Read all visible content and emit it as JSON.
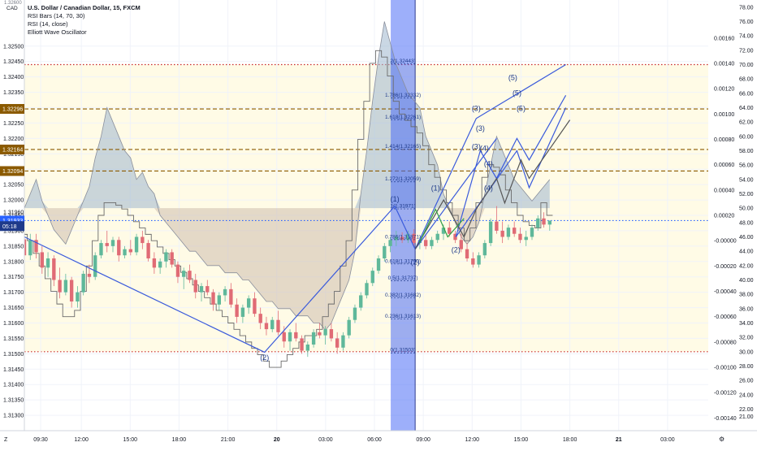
{
  "header": {
    "title": "U.S. Dollar / Canadian Dollar, 15, FXCM",
    "indicators": [
      "RSI Bars (14, 70, 30)",
      "RSI (14, close)",
      "Elliott Wave Oscillator"
    ],
    "currency": "CAD",
    "top_price_fragment": "1.32600"
  },
  "chart_data": {
    "type": "candlestick",
    "symbol": "USD/CAD",
    "interval": "15",
    "source": "FXCM",
    "price_axis": {
      "range": [
        1.3125,
        1.3265
      ],
      "ticks": [
        "1.32500",
        "1.32450",
        "1.32400",
        "1.32350",
        "1.32300",
        "1.32250",
        "1.32200",
        "1.32150",
        "1.32100",
        "1.32050",
        "1.32000",
        "1.31950",
        "1.31900",
        "1.31850",
        "1.31800",
        "1.31750",
        "1.31700",
        "1.31650",
        "1.31600",
        "1.31550",
        "1.31500",
        "1.31450",
        "1.31400",
        "1.31350",
        "1.31300"
      ],
      "markers": [
        {
          "label": "1.32296",
          "value": 1.32296,
          "color": "#8b5a00"
        },
        {
          "label": "1.32164",
          "value": 1.32164,
          "color": "#8b5a00"
        },
        {
          "label": "1.32094",
          "value": 1.32094,
          "color": "#8b5a00"
        },
        {
          "label": "1.31933",
          "value": 1.31933,
          "color": "#2962ff"
        },
        {
          "label": "05:18",
          "value": 1.31915,
          "color": "#1e3a8a"
        }
      ],
      "partial_label": "1.31960"
    },
    "rsi_axis": {
      "range": [
        19,
        79
      ],
      "ticks": [
        "78.00",
        "76.00",
        "74.00",
        "72.00",
        "70.00",
        "68.00",
        "66.00",
        "64.00",
        "62.00",
        "60.00",
        "58.00",
        "56.00",
        "54.00",
        "52.00",
        "50.00",
        "48.00",
        "46.00",
        "44.00",
        "42.00",
        "40.00",
        "38.00",
        "36.00",
        "34.00",
        "32.00",
        "30.00",
        "28.00",
        "26.00",
        "24.00",
        "22.00",
        "21.00"
      ],
      "overbought": 70,
      "oversold": 30
    },
    "ewo_axis": {
      "range": [
        -0.0015,
        0.0019
      ],
      "ticks": [
        "0.00160",
        "0.00140",
        "0.00120",
        "0.00100",
        "0.00080",
        "0.00060",
        "0.00040",
        "0.00020",
        "-0.00000",
        "-0.00020",
        "-0.00040",
        "-0.00060",
        "-0.00080",
        "-0.00100",
        "-0.00120",
        "-0.00140"
      ]
    },
    "time_axis": {
      "range": [
        0,
        168
      ],
      "ticks": [
        {
          "label": "09:30",
          "t": 4
        },
        {
          "label": "12:00",
          "t": 14
        },
        {
          "label": "15:00",
          "t": 26
        },
        {
          "label": "18:00",
          "t": 38
        },
        {
          "label": "21:00",
          "t": 50
        },
        {
          "label": "20",
          "t": 62
        },
        {
          "label": "03:00",
          "t": 74
        },
        {
          "label": "06:00",
          "t": 86
        },
        {
          "label": "09:00",
          "t": 98
        },
        {
          "label": "12:00",
          "t": 110
        },
        {
          "label": "15:00",
          "t": 122
        },
        {
          "label": "18:00",
          "t": 134
        },
        {
          "label": "21",
          "t": 146
        },
        {
          "label": "03:00",
          "t": 158
        }
      ],
      "corner_left": "Z",
      "corner_right": "⚙"
    },
    "candles": [
      [
        1.31872,
        1.31875,
        1.318,
        1.3182
      ],
      [
        1.3182,
        1.3189,
        1.31805,
        1.3187
      ],
      [
        1.3187,
        1.3189,
        1.3181,
        1.3183
      ],
      [
        1.3183,
        1.3185,
        1.3176,
        1.3178
      ],
      [
        1.3178,
        1.3183,
        1.3175,
        1.3181
      ],
      [
        1.3181,
        1.3182,
        1.3172,
        1.3174
      ],
      [
        1.3174,
        1.3178,
        1.3168,
        1.317
      ],
      [
        1.317,
        1.3176,
        1.3169,
        1.3174
      ],
      [
        1.3174,
        1.3175,
        1.3165,
        1.3167
      ],
      [
        1.3167,
        1.3172,
        1.3165,
        1.317
      ],
      [
        1.317,
        1.3177,
        1.3169,
        1.3176
      ],
      [
        1.3176,
        1.3179,
        1.3173,
        1.3175
      ],
      [
        1.3175,
        1.3183,
        1.3174,
        1.3182
      ],
      [
        1.3182,
        1.3187,
        1.3181,
        1.3186
      ],
      [
        1.3186,
        1.319,
        1.3183,
        1.3185
      ],
      [
        1.3185,
        1.3188,
        1.3183,
        1.3187
      ],
      [
        1.3187,
        1.3188,
        1.318,
        1.3182
      ],
      [
        1.3182,
        1.3185,
        1.3181,
        1.3184
      ],
      [
        1.3184,
        1.3187,
        1.3182,
        1.3183
      ],
      [
        1.3183,
        1.3189,
        1.3182,
        1.3188
      ],
      [
        1.3188,
        1.319,
        1.3184,
        1.3186
      ],
      [
        1.3186,
        1.3187,
        1.318,
        1.3181
      ],
      [
        1.3181,
        1.3183,
        1.3176,
        1.3178
      ],
      [
        1.3178,
        1.3181,
        1.3176,
        1.318
      ],
      [
        1.318,
        1.3184,
        1.3178,
        1.3183
      ],
      [
        1.3183,
        1.3184,
        1.3178,
        1.3179
      ],
      [
        1.3179,
        1.318,
        1.3173,
        1.3175
      ],
      [
        1.3175,
        1.3178,
        1.3171,
        1.3177
      ],
      [
        1.3177,
        1.3179,
        1.3173,
        1.3174
      ],
      [
        1.3174,
        1.3176,
        1.3168,
        1.317
      ],
      [
        1.317,
        1.3173,
        1.3167,
        1.3172
      ],
      [
        1.3172,
        1.3174,
        1.3169,
        1.317
      ],
      [
        1.317,
        1.3171,
        1.3164,
        1.3166
      ],
      [
        1.3166,
        1.317,
        1.3164,
        1.3169
      ],
      [
        1.3169,
        1.3172,
        1.3167,
        1.3171
      ],
      [
        1.3171,
        1.3173,
        1.3165,
        1.3166
      ],
      [
        1.3166,
        1.3168,
        1.316,
        1.3162
      ],
      [
        1.3162,
        1.3166,
        1.316,
        1.3165
      ],
      [
        1.3165,
        1.3169,
        1.3163,
        1.3168
      ],
      [
        1.3168,
        1.317,
        1.3162,
        1.3163
      ],
      [
        1.3163,
        1.3165,
        1.3158,
        1.316
      ],
      [
        1.316,
        1.3162,
        1.3156,
        1.3158
      ],
      [
        1.3158,
        1.3162,
        1.3157,
        1.3161
      ],
      [
        1.3161,
        1.3164,
        1.3156,
        1.3157
      ],
      [
        1.3157,
        1.3159,
        1.3152,
        1.3154
      ],
      [
        1.3154,
        1.3158,
        1.3151,
        1.3157
      ],
      [
        1.3157,
        1.316,
        1.3154,
        1.3155
      ],
      [
        1.3155,
        1.3156,
        1.315,
        1.3151
      ],
      [
        1.3151,
        1.3154,
        1.3149,
        1.3153
      ],
      [
        1.3153,
        1.3158,
        1.3152,
        1.3157
      ],
      [
        1.3157,
        1.316,
        1.3155,
        1.3156
      ],
      [
        1.3156,
        1.3159,
        1.3153,
        1.3158
      ],
      [
        1.3158,
        1.316,
        1.3154,
        1.3155
      ],
      [
        1.3155,
        1.3157,
        1.315,
        1.3152
      ],
      [
        1.3152,
        1.3157,
        1.3151,
        1.3156
      ],
      [
        1.3156,
        1.3162,
        1.3155,
        1.3161
      ],
      [
        1.3161,
        1.3166,
        1.316,
        1.3165
      ],
      [
        1.3165,
        1.317,
        1.3164,
        1.3169
      ],
      [
        1.3169,
        1.3174,
        1.3168,
        1.3173
      ],
      [
        1.3173,
        1.3178,
        1.3172,
        1.3177
      ],
      [
        1.3177,
        1.3182,
        1.3176,
        1.3181
      ],
      [
        1.3181,
        1.3186,
        1.318,
        1.3185
      ],
      [
        1.3185,
        1.3188,
        1.3183,
        1.3187
      ],
      [
        1.3187,
        1.319,
        1.3185,
        1.3188
      ],
      [
        1.3188,
        1.31895,
        1.3186,
        1.3187
      ],
      [
        1.3187,
        1.319,
        1.3186,
        1.3189
      ],
      [
        1.3189,
        1.31905,
        1.3185,
        1.3186
      ],
      [
        1.3186,
        1.3188,
        1.3184,
        1.3187
      ],
      [
        1.3187,
        1.3189,
        1.3184,
        1.3185
      ],
      [
        1.3185,
        1.3188,
        1.3184,
        1.3187
      ],
      [
        1.3187,
        1.319,
        1.3186,
        1.3189
      ],
      [
        1.3189,
        1.3192,
        1.3187,
        1.3191
      ],
      [
        1.3191,
        1.3193,
        1.3188,
        1.3189
      ],
      [
        1.3189,
        1.319,
        1.3186,
        1.3187
      ],
      [
        1.3187,
        1.3189,
        1.3183,
        1.3184
      ],
      [
        1.3184,
        1.3186,
        1.318,
        1.3181
      ],
      [
        1.3181,
        1.3183,
        1.3178,
        1.3179
      ],
      [
        1.3179,
        1.3183,
        1.3178,
        1.3182
      ],
      [
        1.3182,
        1.3187,
        1.3181,
        1.3186
      ],
      [
        1.3186,
        1.3194,
        1.3185,
        1.3193
      ],
      [
        1.3193,
        1.3198,
        1.3189,
        1.319
      ],
      [
        1.319,
        1.3193,
        1.3186,
        1.3188
      ],
      [
        1.3188,
        1.3192,
        1.3187,
        1.3191
      ],
      [
        1.3191,
        1.3193,
        1.3188,
        1.3189
      ],
      [
        1.3189,
        1.3191,
        1.3186,
        1.3187
      ],
      [
        1.3187,
        1.319,
        1.3185,
        1.3188
      ],
      [
        1.3188,
        1.3192,
        1.3187,
        1.3191
      ],
      [
        1.3191,
        1.3195,
        1.319,
        1.3194
      ],
      [
        1.3194,
        1.3196,
        1.3191,
        1.3192
      ],
      [
        1.3192,
        1.31933,
        1.319,
        1.31933
      ]
    ],
    "candle_time_start": 0,
    "candle_time_step": 1.45,
    "rsi": [
      50,
      52,
      54,
      51,
      49,
      47,
      46,
      45,
      47,
      49,
      51,
      53,
      57,
      60,
      64,
      62,
      60,
      58,
      57,
      54,
      55,
      53,
      52,
      49,
      48,
      47,
      46,
      45,
      44,
      44,
      43,
      42,
      42,
      42,
      41,
      41,
      41,
      40,
      40,
      39,
      38,
      37,
      37,
      36,
      36,
      36,
      35,
      35,
      35,
      34,
      34,
      33,
      34,
      36,
      38,
      40,
      44,
      52,
      58,
      65,
      71,
      76,
      73,
      70,
      68,
      66,
      65,
      64,
      60,
      58,
      56,
      52,
      50,
      48,
      46,
      45,
      46,
      48,
      52,
      56,
      60,
      58,
      56,
      54,
      53,
      52,
      51,
      52,
      53,
      54
    ],
    "ewo": [
      5e-05,
      0.0,
      -0.0001,
      -0.0002,
      -0.0003,
      -0.0004,
      -0.0005,
      -0.0006,
      -0.0006,
      -0.00055,
      -0.0004,
      -0.0002,
      0.0,
      0.0002,
      0.0003,
      0.0003,
      0.00028,
      0.00025,
      0.0002,
      0.00015,
      0.0001,
      5e-05,
      0.0,
      -5e-05,
      -0.0001,
      -0.00015,
      -0.0002,
      -0.00025,
      -0.0003,
      -0.00035,
      -0.0004,
      -0.00045,
      -0.0005,
      -0.00055,
      -0.0006,
      -0.00065,
      -0.0007,
      -0.00075,
      -0.0008,
      -0.00085,
      -0.0009,
      -0.00095,
      -0.001,
      -0.001,
      -0.00095,
      -0.0009,
      -0.00085,
      -0.0008,
      -0.00075,
      -0.00075,
      -0.0007,
      -0.0006,
      -0.0005,
      -0.0004,
      -0.0002,
      0.0,
      0.0004,
      0.0008,
      0.0011,
      0.0014,
      0.0015,
      0.00145,
      0.0013,
      0.0011,
      0.001,
      0.00095,
      0.0009,
      0.00085,
      0.00075,
      0.0006,
      0.0005,
      0.0004,
      0.0003,
      0.0002,
      0.0001,
      0.0,
      0.0001,
      0.0003,
      0.0005,
      0.0006,
      0.00058,
      0.00052,
      0.0004,
      0.0003,
      0.0002,
      0.00015,
      0.00012,
      0.0001,
      0.0003,
      0.0002
    ],
    "fib_levels": [
      {
        "label": "2(1.32443)",
        "value": 1.32443
      },
      {
        "label": "1.786(1.32332)",
        "value": 1.32332
      },
      {
        "label": "1.618(1.32261)",
        "value": 1.32261
      },
      {
        "label": "1.414(1.32165)",
        "value": 1.32165
      },
      {
        "label": "1.272(1.32059)",
        "value": 1.32059
      },
      {
        "label": "1(1.31971)",
        "value": 1.31971
      },
      {
        "label": "0.786(1.31871)",
        "value": 1.31871
      },
      {
        "label": "0.618(1.31792)",
        "value": 1.31792
      },
      {
        "label": "0.5(1.31737)",
        "value": 1.31737
      },
      {
        "label": "0.382(1.31682)",
        "value": 1.31682
      },
      {
        "label": "0.236(1.31613)",
        "value": 1.31613
      },
      {
        "label": "0(1.31503)",
        "value": 1.31503
      }
    ],
    "wave_lines": [
      {
        "color": "#3b5bdb",
        "points": [
          [
            0,
            1.3188
          ],
          [
            59,
            1.31505
          ],
          [
            91,
            1.3198
          ],
          [
            96,
            1.3184
          ],
          [
            111,
            1.32265
          ],
          [
            133,
            1.3244
          ]
        ]
      },
      {
        "color": "#3b5bdb",
        "points": [
          [
            96,
            1.3184
          ],
          [
            116,
            1.322
          ]
        ]
      },
      {
        "color": "#3b5bdb",
        "points": [
          [
            106,
            1.3188
          ],
          [
            121,
            1.3216
          ],
          [
            124,
            1.3204
          ],
          [
            133,
            1.323
          ]
        ]
      },
      {
        "color": "#3b5bdb",
        "points": [
          [
            106,
            1.3188
          ],
          [
            112,
            1.3216
          ],
          [
            116,
            1.3207
          ],
          [
            121,
            1.322
          ],
          [
            124,
            1.3213
          ],
          [
            133,
            1.3234
          ]
        ]
      },
      {
        "color": "#3b5bdb",
        "points": [
          [
            116,
            1.3186
          ]
        ]
      },
      {
        "color": "#555555",
        "points": [
          [
            96,
            1.3184
          ],
          [
            103,
            1.32
          ],
          [
            108,
            1.3188
          ],
          [
            111,
            1.3197
          ],
          [
            116,
            1.3207
          ],
          [
            118,
            1.3199
          ],
          [
            122,
            1.3213
          ],
          [
            124,
            1.3207
          ],
          [
            134,
            1.3226
          ]
        ]
      },
      {
        "color": "#2f9e44",
        "points": [
          [
            97,
            1.3186
          ],
          [
            101,
            1.3197
          ],
          [
            104,
            1.3188
          ],
          [
            108,
            1.3194
          ]
        ]
      }
    ],
    "wave_labels": [
      {
        "text": "(2)",
        "t": 59,
        "v": 1.3148,
        "color": "#1e3a8a"
      },
      {
        "text": "(1)",
        "t": 91,
        "v": 1.31995,
        "color": "#1e3a8a"
      },
      {
        "text": "(2)",
        "t": 96,
        "v": 1.3179,
        "color": "#1e3a8a"
      },
      {
        "text": "(1)",
        "t": 101,
        "v": 1.3203,
        "color": "#1e3a8a"
      },
      {
        "text": "(2)",
        "t": 106,
        "v": 1.3183,
        "color": "#1e3a8a"
      },
      {
        "text": "(3)",
        "t": 111,
        "v": 1.3229,
        "color": "#1e3a8a"
      },
      {
        "text": "(3)",
        "t": 112,
        "v": 1.32225,
        "color": "#1e3a8a"
      },
      {
        "text": "(3)",
        "t": 111,
        "v": 1.32165,
        "color": "#1e3a8a"
      },
      {
        "text": "(4)",
        "t": 113,
        "v": 1.3216,
        "color": "#1e3a8a"
      },
      {
        "text": "(4)",
        "t": 114,
        "v": 1.3211,
        "color": "#1e3a8a"
      },
      {
        "text": "(4)",
        "t": 114,
        "v": 1.3203,
        "color": "#1e3a8a"
      },
      {
        "text": "(5)",
        "t": 120,
        "v": 1.3239,
        "color": "#1e3a8a"
      },
      {
        "text": "(5)",
        "t": 121,
        "v": 1.3234,
        "color": "#1e3a8a"
      },
      {
        "text": "(5)",
        "t": 122,
        "v": 1.3229,
        "color": "#1e3a8a"
      }
    ],
    "horizontal_lines": [
      {
        "value": 1.32296,
        "style": "dashed",
        "color": "#8b5a00"
      },
      {
        "value": 1.32164,
        "style": "dashed",
        "color": "#8b5a00"
      },
      {
        "value": 1.32094,
        "style": "dashed",
        "color": "#8b5a00"
      },
      {
        "value": 1.31933,
        "style": "dotted",
        "color": "#2962ff"
      }
    ],
    "highlight_time_window": [
      90,
      96
    ],
    "vertical_marker_t": 96
  }
}
